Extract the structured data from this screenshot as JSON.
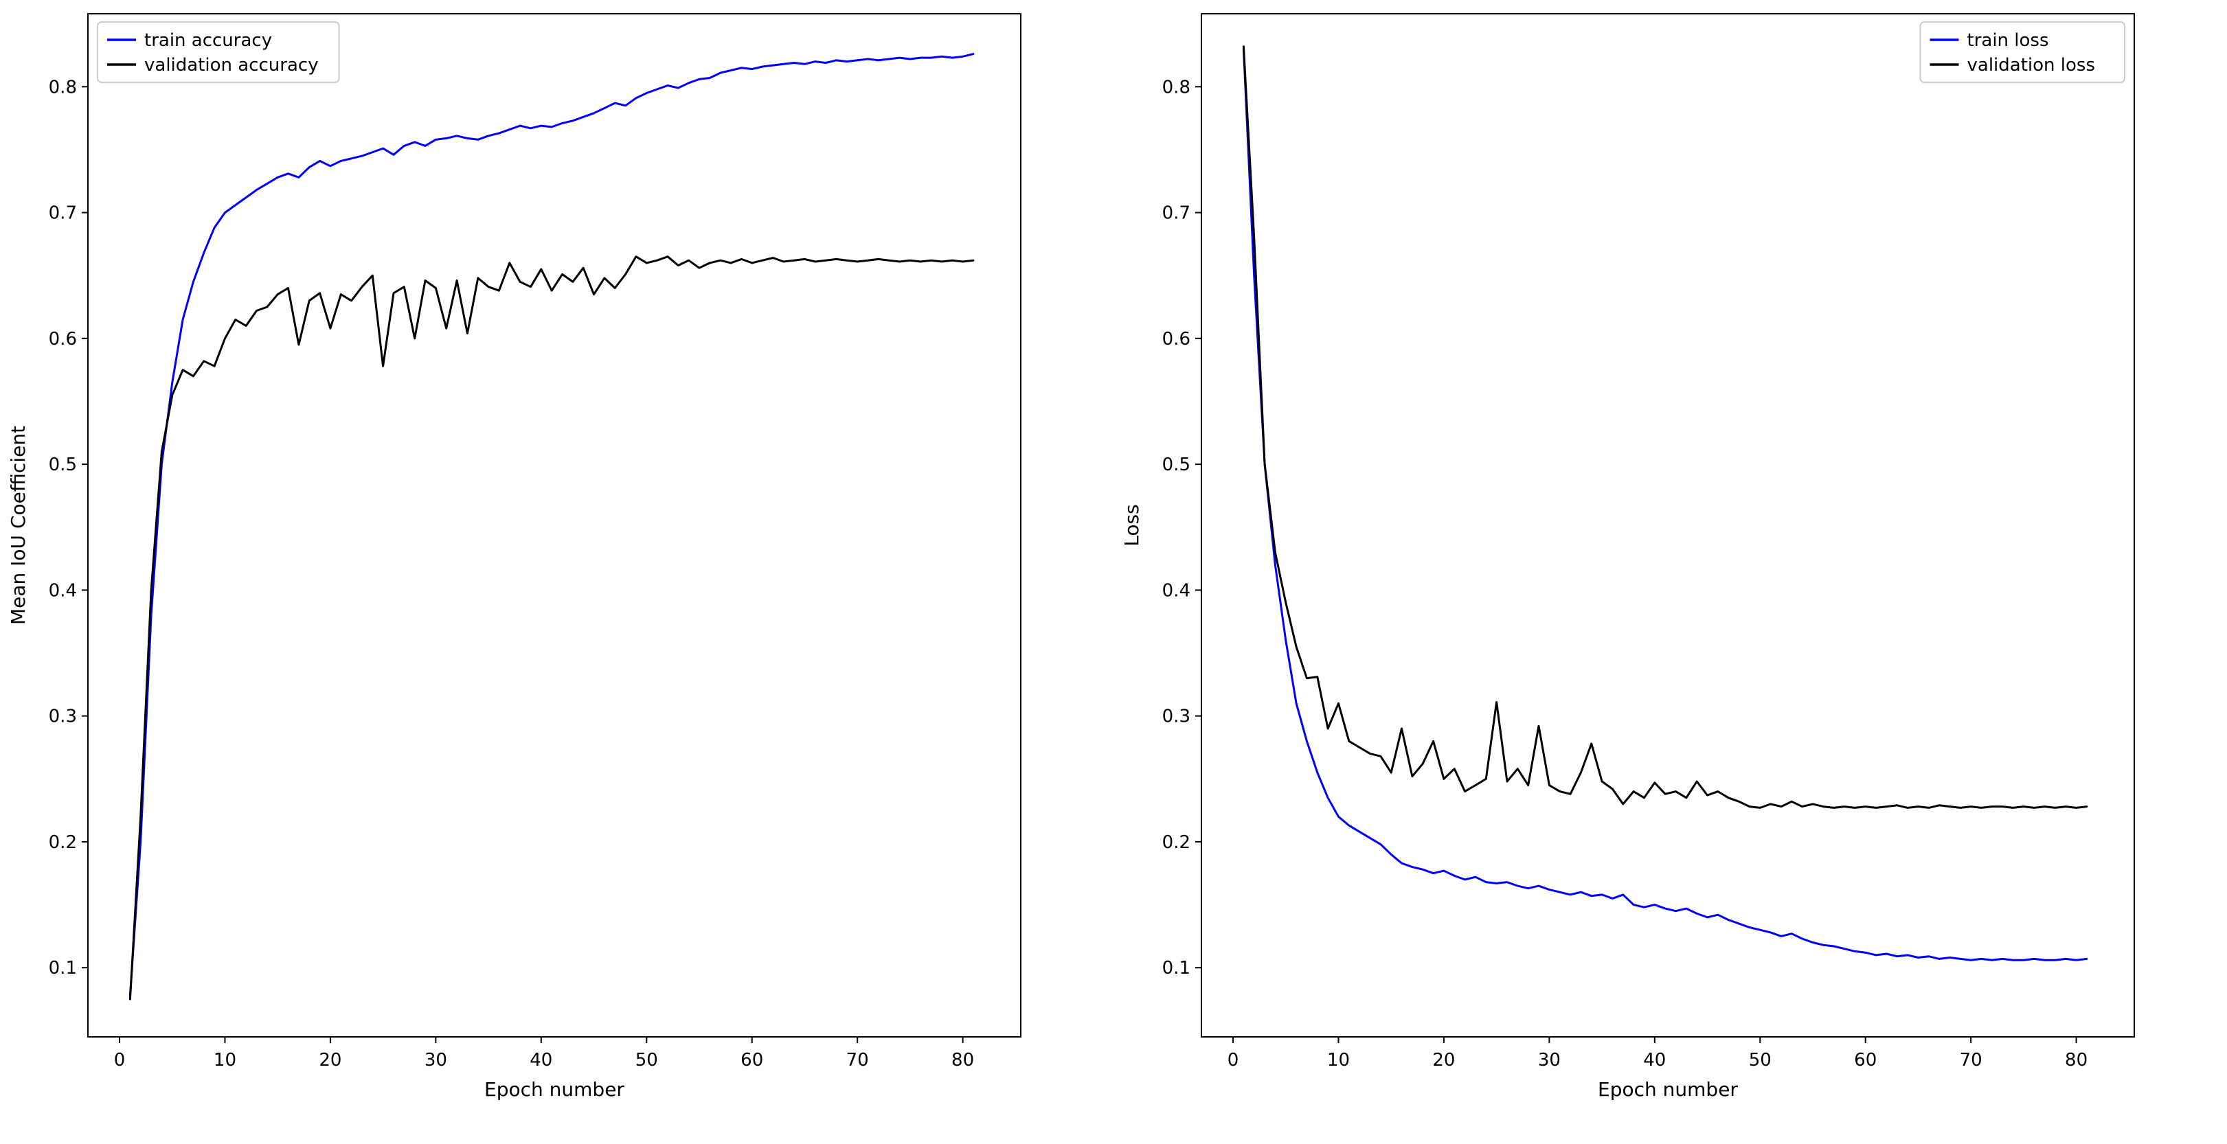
{
  "page": {
    "background": "#ffffff",
    "text_color": "#000000",
    "legend_border_color": "#cccccc"
  },
  "chart_data": [
    {
      "type": "line",
      "title": "",
      "xlabel": "Epoch number",
      "ylabel": "Mean IoU Coefficient",
      "xlim": [
        -3,
        85.5
      ],
      "ylim": [
        0.045,
        0.858
      ],
      "xticks": [
        0,
        10,
        20,
        30,
        40,
        50,
        60,
        70,
        80
      ],
      "yticks": [
        0.1,
        0.2,
        0.3,
        0.4,
        0.5,
        0.6,
        0.7,
        0.8
      ],
      "grid": false,
      "legend_position": "upper-left",
      "x": [
        1,
        2,
        3,
        4,
        5,
        6,
        7,
        8,
        9,
        10,
        11,
        12,
        13,
        14,
        15,
        16,
        17,
        18,
        19,
        20,
        21,
        22,
        23,
        24,
        25,
        26,
        27,
        28,
        29,
        30,
        31,
        32,
        33,
        34,
        35,
        36,
        37,
        38,
        39,
        40,
        41,
        42,
        43,
        44,
        45,
        46,
        47,
        48,
        49,
        50,
        51,
        52,
        53,
        54,
        55,
        56,
        57,
        58,
        59,
        60,
        61,
        62,
        63,
        64,
        65,
        66,
        67,
        68,
        69,
        70,
        71,
        72,
        73,
        74,
        75,
        76,
        77,
        78,
        79,
        80,
        81
      ],
      "series": [
        {
          "name": "train accuracy",
          "color": "#0000ff",
          "values": [
            0.078,
            0.2,
            0.38,
            0.5,
            0.565,
            0.615,
            0.645,
            0.668,
            0.688,
            0.7,
            0.706,
            0.712,
            0.718,
            0.723,
            0.728,
            0.731,
            0.728,
            0.736,
            0.741,
            0.737,
            0.741,
            0.743,
            0.745,
            0.748,
            0.751,
            0.746,
            0.753,
            0.756,
            0.753,
            0.758,
            0.759,
            0.761,
            0.759,
            0.758,
            0.761,
            0.763,
            0.766,
            0.769,
            0.767,
            0.769,
            0.768,
            0.771,
            0.773,
            0.776,
            0.779,
            0.783,
            0.787,
            0.785,
            0.791,
            0.795,
            0.798,
            0.801,
            0.799,
            0.803,
            0.806,
            0.807,
            0.811,
            0.813,
            0.815,
            0.814,
            0.816,
            0.817,
            0.818,
            0.819,
            0.818,
            0.82,
            0.819,
            0.821,
            0.82,
            0.821,
            0.822,
            0.821,
            0.822,
            0.823,
            0.822,
            0.823,
            0.823,
            0.824,
            0.823,
            0.824,
            0.826
          ]
        },
        {
          "name": "validation accuracy",
          "color": "#000000",
          "values": [
            0.075,
            0.22,
            0.4,
            0.51,
            0.555,
            0.575,
            0.57,
            0.582,
            0.578,
            0.6,
            0.615,
            0.61,
            0.622,
            0.625,
            0.635,
            0.64,
            0.595,
            0.63,
            0.636,
            0.608,
            0.635,
            0.63,
            0.641,
            0.65,
            0.578,
            0.636,
            0.641,
            0.6,
            0.646,
            0.64,
            0.608,
            0.646,
            0.604,
            0.648,
            0.641,
            0.638,
            0.66,
            0.645,
            0.641,
            0.655,
            0.638,
            0.651,
            0.645,
            0.656,
            0.635,
            0.648,
            0.64,
            0.651,
            0.665,
            0.66,
            0.662,
            0.665,
            0.658,
            0.662,
            0.656,
            0.66,
            0.662,
            0.66,
            0.663,
            0.66,
            0.662,
            0.664,
            0.661,
            0.662,
            0.663,
            0.661,
            0.662,
            0.663,
            0.662,
            0.661,
            0.662,
            0.663,
            0.662,
            0.661,
            0.662,
            0.661,
            0.662,
            0.661,
            0.662,
            0.661,
            0.662
          ]
        }
      ]
    },
    {
      "type": "line",
      "title": "",
      "xlabel": "Epoch number",
      "ylabel": "Loss",
      "xlim": [
        -3,
        85.5
      ],
      "ylim": [
        0.045,
        0.858
      ],
      "xticks": [
        0,
        10,
        20,
        30,
        40,
        50,
        60,
        70,
        80
      ],
      "yticks": [
        0.1,
        0.2,
        0.3,
        0.4,
        0.5,
        0.6,
        0.7,
        0.8
      ],
      "grid": false,
      "legend_position": "upper-right",
      "x": [
        1,
        2,
        3,
        4,
        5,
        6,
        7,
        8,
        9,
        10,
        11,
        12,
        13,
        14,
        15,
        16,
        17,
        18,
        19,
        20,
        21,
        22,
        23,
        24,
        25,
        26,
        27,
        28,
        29,
        30,
        31,
        32,
        33,
        34,
        35,
        36,
        37,
        38,
        39,
        40,
        41,
        42,
        43,
        44,
        45,
        46,
        47,
        48,
        49,
        50,
        51,
        52,
        53,
        54,
        55,
        56,
        57,
        58,
        59,
        60,
        61,
        62,
        63,
        64,
        65,
        66,
        67,
        68,
        69,
        70,
        71,
        72,
        73,
        74,
        75,
        76,
        77,
        78,
        79,
        80,
        81
      ],
      "series": [
        {
          "name": "train loss",
          "color": "#0000ff",
          "values": [
            0.83,
            0.65,
            0.5,
            0.42,
            0.36,
            0.31,
            0.28,
            0.255,
            0.235,
            0.22,
            0.213,
            0.208,
            0.203,
            0.198,
            0.19,
            0.183,
            0.18,
            0.178,
            0.175,
            0.177,
            0.173,
            0.17,
            0.172,
            0.168,
            0.167,
            0.168,
            0.165,
            0.163,
            0.165,
            0.162,
            0.16,
            0.158,
            0.16,
            0.157,
            0.158,
            0.155,
            0.158,
            0.15,
            0.148,
            0.15,
            0.147,
            0.145,
            0.147,
            0.143,
            0.14,
            0.142,
            0.138,
            0.135,
            0.132,
            0.13,
            0.128,
            0.125,
            0.127,
            0.123,
            0.12,
            0.118,
            0.117,
            0.115,
            0.113,
            0.112,
            0.11,
            0.111,
            0.109,
            0.11,
            0.108,
            0.109,
            0.107,
            0.108,
            0.107,
            0.106,
            0.107,
            0.106,
            0.107,
            0.106,
            0.106,
            0.107,
            0.106,
            0.106,
            0.107,
            0.106,
            0.107
          ]
        },
        {
          "name": "validation loss",
          "color": "#000000",
          "values": [
            0.832,
            0.68,
            0.5,
            0.43,
            0.39,
            0.355,
            0.33,
            0.331,
            0.29,
            0.31,
            0.28,
            0.275,
            0.27,
            0.268,
            0.255,
            0.29,
            0.252,
            0.262,
            0.28,
            0.25,
            0.258,
            0.24,
            0.245,
            0.25,
            0.311,
            0.248,
            0.258,
            0.245,
            0.292,
            0.245,
            0.24,
            0.238,
            0.255,
            0.278,
            0.248,
            0.242,
            0.23,
            0.24,
            0.235,
            0.247,
            0.238,
            0.24,
            0.235,
            0.248,
            0.237,
            0.24,
            0.235,
            0.232,
            0.228,
            0.227,
            0.23,
            0.228,
            0.232,
            0.228,
            0.23,
            0.228,
            0.227,
            0.228,
            0.227,
            0.228,
            0.227,
            0.228,
            0.229,
            0.227,
            0.228,
            0.227,
            0.229,
            0.228,
            0.227,
            0.228,
            0.227,
            0.228,
            0.228,
            0.227,
            0.228,
            0.227,
            0.228,
            0.227,
            0.228,
            0.227,
            0.228
          ]
        }
      ]
    }
  ]
}
